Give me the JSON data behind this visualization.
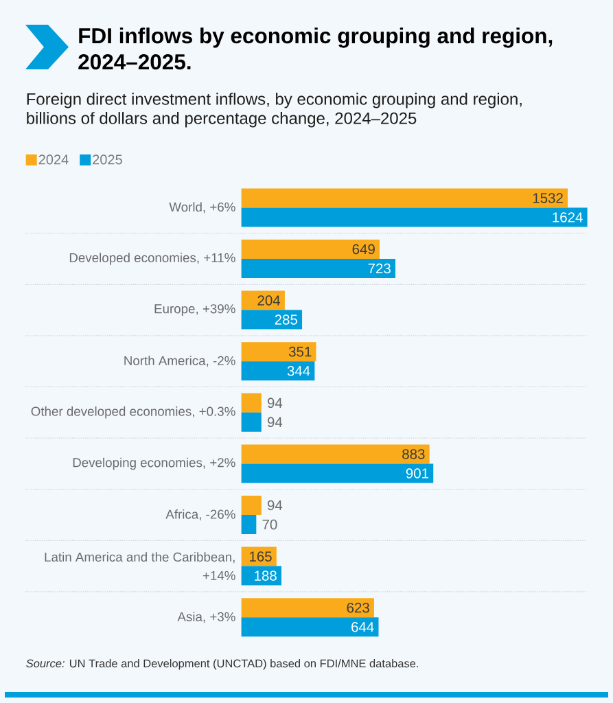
{
  "chart_data": {
    "type": "bar",
    "orientation": "horizontal",
    "title": "FDI inflows by economic grouping and region, 2024–2025.",
    "subtitle": "Foreign direct investment inflows, by economic grouping and region, billions of dollars and percentage change, 2024–2025",
    "categories": [
      "World, +6%",
      "Developed economies, +11%",
      "Europe, +39%",
      "North America, -2%",
      "Other developed economies, +0.3%",
      "Developing economies, +2%",
      "Africa, -26%",
      "Latin America and the Caribbean, +14%",
      "Asia, +3%"
    ],
    "series": [
      {
        "name": "2024",
        "color": "#f9ab1b",
        "values": [
          1532,
          649,
          204,
          351,
          94,
          883,
          94,
          165,
          623
        ]
      },
      {
        "name": "2025",
        "color": "#009edb",
        "values": [
          1624,
          723,
          285,
          344,
          94,
          901,
          70,
          188,
          644
        ]
      }
    ],
    "data_labels": true,
    "legend": "top left",
    "grid": "y",
    "annotations": [
      "*Source:* UN Trade and Development (UNCTAD) based on FDI/MNE database."
    ]
  }
}
